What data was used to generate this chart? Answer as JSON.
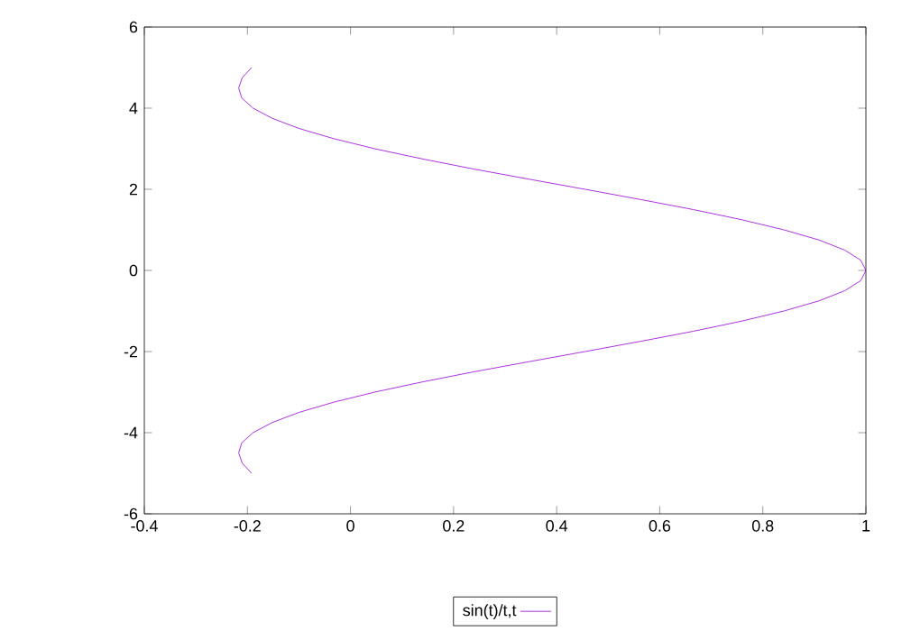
{
  "chart_data": {
    "type": "line",
    "xlim": [
      -0.4,
      1
    ],
    "ylim": [
      -6,
      6
    ],
    "xticks": [
      -0.4,
      -0.2,
      0,
      0.2,
      0.4,
      0.6,
      0.8,
      1
    ],
    "yticks": [
      -6,
      -4,
      -2,
      0,
      2,
      4,
      6
    ],
    "grid": false,
    "legend": "bottom",
    "marker": "none",
    "line_style": "solid",
    "series": [
      {
        "name": "sin(t)/t,t",
        "color": "#9400d3",
        "x": [
          -0.192,
          -0.21,
          -0.217,
          -0.211,
          -0.189,
          -0.152,
          -0.1,
          -0.033,
          0.047,
          0.139,
          0.239,
          0.346,
          0.455,
          0.562,
          0.665,
          0.759,
          0.841,
          0.909,
          0.959,
          0.99,
          1,
          0.99,
          0.959,
          0.909,
          0.841,
          0.759,
          0.665,
          0.562,
          0.455,
          0.346,
          0.239,
          0.139,
          0.047,
          -0.033,
          -0.1,
          -0.152,
          -0.189,
          -0.211,
          -0.217,
          -0.21,
          -0.192
        ],
        "values": [
          -5,
          -4.75,
          -4.5,
          -4.25,
          -4,
          -3.75,
          -3.5,
          -3.25,
          -3,
          -2.75,
          -2.5,
          -2.25,
          -2,
          -1.75,
          -1.5,
          -1.25,
          -1,
          -0.75,
          -0.5,
          -0.25,
          0,
          0.25,
          0.5,
          0.75,
          1,
          1.25,
          1.5,
          1.75,
          2,
          2.25,
          2.5,
          2.75,
          3,
          3.25,
          3.5,
          3.75,
          4,
          4.25,
          4.5,
          4.75,
          5
        ]
      }
    ]
  }
}
